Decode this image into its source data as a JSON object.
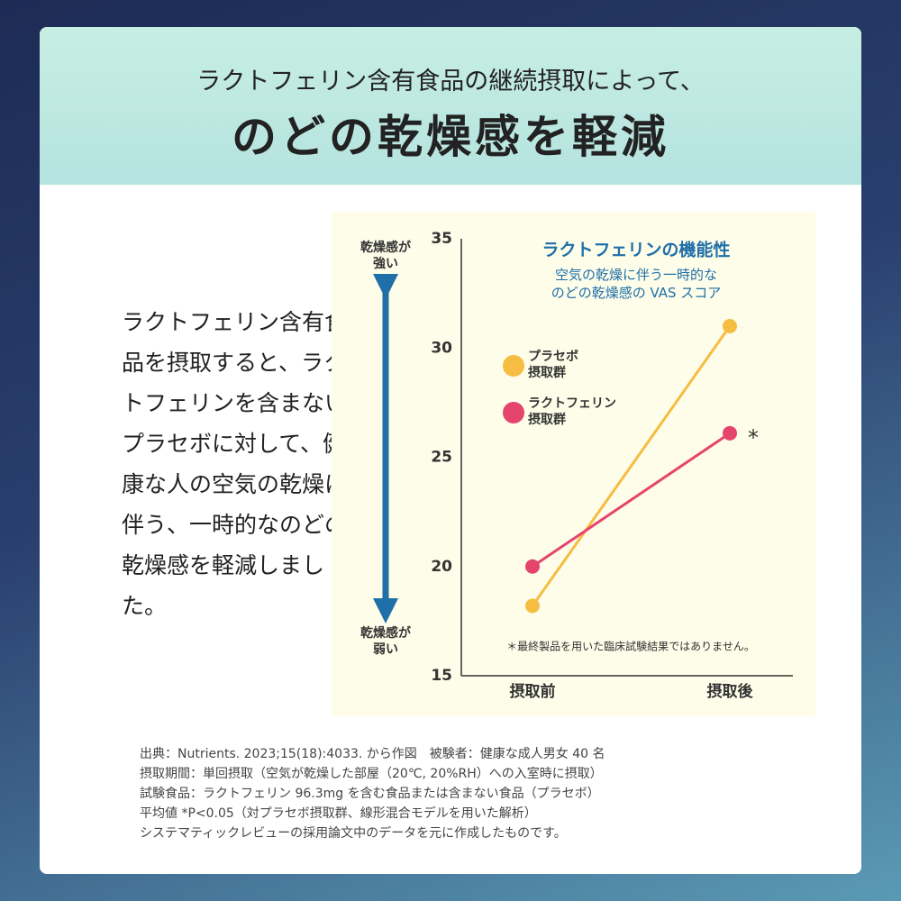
{
  "header": {
    "subtitle": "ラクトフェリン含有食品の継続摂取によって、",
    "title": "のどの乾燥感を軽減"
  },
  "body_text": "ラクトフェリン含有食品を摂取すると、ラクトフェリンを含まないプラセボに対して、健康な人の空気の乾燥に伴う、一時的なのどの乾燥感を軽減しました。",
  "chart_data": {
    "type": "line",
    "title": "ラクトフェリンの機能性",
    "subtitle": "空気の乾燥に伴う一時的な\nのどの乾燥感の VAS スコア",
    "y_axis_top_label": "乾燥感が\n強い",
    "y_axis_bottom_label": "乾燥感が\n弱い",
    "categories": [
      "摂取前",
      "摂取後"
    ],
    "series": [
      {
        "name": "プラセボ\n摂取群",
        "color": "#f5bd42",
        "values": [
          18.2,
          31.0
        ]
      },
      {
        "name": "ラクトフェリン\n摂取群",
        "color": "#e5446d",
        "values": [
          20.0,
          26.1
        ],
        "annotation": "*"
      }
    ],
    "ylim": [
      15,
      35
    ],
    "yticks": [
      15,
      20,
      25,
      30,
      35
    ],
    "grid": false,
    "note": "＊最終製品を用いた臨床試験結果ではありません。"
  },
  "footnotes": [
    "出典：Nutrients. 2023;15(18):4033. から作図　被験者：健康な成人男女 40 名",
    "摂取期間：単回摂取（空気が乾燥した部屋（20℃, 20%RH）への入室時に摂取）",
    "試験食品：ラクトフェリン 96.3mg を含む食品または含まない食品（プラセボ）",
    "平均値 *P<0.05（対プラセボ摂取群、線形混合モデルを用いた解析）",
    "システマティックレビューの採用論文中のデータを元に作成したものです。"
  ]
}
